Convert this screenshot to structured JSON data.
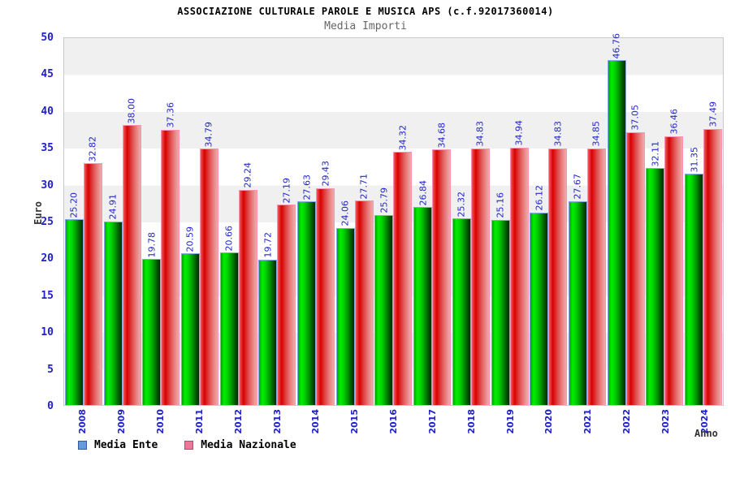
{
  "title": "ASSOCIAZIONE CULTURALE PAROLE E MUSICA APS (c.f.92017360014)",
  "subtitle": "Media Importi",
  "chart_data": {
    "type": "bar",
    "title": "Media Importi",
    "xlabel": "Anno",
    "ylabel": "Euro",
    "ylim": [
      0,
      50
    ],
    "ytick_step": 5,
    "grid": "horizontal alternating bands every 5 units, gray top band",
    "legend_position": "bottom-left",
    "categories": [
      "2008",
      "2009",
      "2010",
      "2011",
      "2012",
      "2013",
      "2014",
      "2015",
      "2016",
      "2017",
      "2018",
      "2019",
      "2020",
      "2021",
      "2022",
      "2023",
      "2024"
    ],
    "series": [
      {
        "name": "Media Ente",
        "legend_color": "#6699dd",
        "bar_style": "green gradient, light blue outline",
        "values": [
          25.2,
          24.91,
          19.78,
          20.59,
          20.66,
          19.72,
          27.63,
          24.06,
          25.79,
          26.84,
          25.32,
          25.16,
          26.12,
          27.67,
          46.76,
          32.11,
          31.35
        ]
      },
      {
        "name": "Media Nazionale",
        "legend_color": "#ee7799",
        "bar_style": "red gradient, pink outline",
        "values": [
          32.82,
          38.0,
          37.36,
          34.79,
          29.24,
          27.19,
          29.43,
          27.71,
          34.32,
          34.68,
          34.83,
          34.94,
          34.83,
          34.85,
          37.05,
          36.46,
          37.49
        ]
      }
    ],
    "value_label_format": "2 decimals, rotated 90deg, blue",
    "colors": {
      "tick_text": "#2020cc",
      "value_text": "#2226c8",
      "axis_title_text": "#333333",
      "subtitle_text": "#666666",
      "band_gray": "#f0f0f0"
    }
  },
  "legend": {
    "items": [
      {
        "label": "Media Ente"
      },
      {
        "label": "Media Nazionale"
      }
    ]
  }
}
